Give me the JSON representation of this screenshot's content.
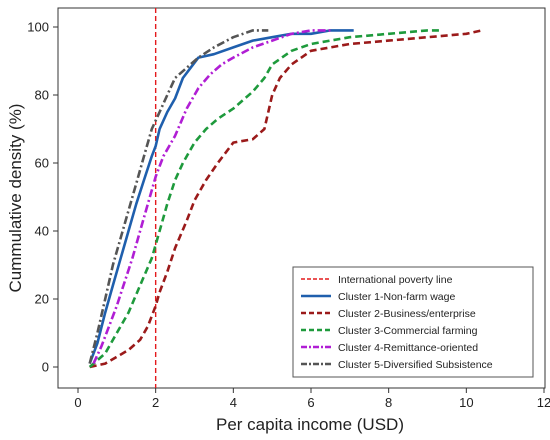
{
  "chart_data": {
    "type": "line",
    "title": "",
    "xlabel": "Per capita income (USD)",
    "ylabel": "Cummulative density (%)",
    "xlim": [
      0,
      12
    ],
    "ylim": [
      0,
      100
    ],
    "x_ticks": [
      "0",
      "2",
      "4",
      "6",
      "8",
      "10",
      "12"
    ],
    "y_ticks": [
      "0",
      "20",
      "40",
      "60",
      "80",
      "100"
    ],
    "grid": false,
    "legend_position": "bottom-right",
    "reference_line": {
      "name": "International poverty line",
      "x": 2,
      "color": "#e41a1c",
      "style": "dashed"
    },
    "series": [
      {
        "name": "Cluster 1-Non-farm wage",
        "color": "#1f5fad",
        "style": "solid",
        "x": [
          0.3,
          0.5,
          0.7,
          0.9,
          1.1,
          1.3,
          1.5,
          1.7,
          1.9,
          2.0,
          2.1,
          2.3,
          2.5,
          2.7,
          2.9,
          3.1,
          3.5,
          4.0,
          4.5,
          5.0,
          5.5,
          6.0,
          6.5,
          7.1
        ],
        "values": [
          1,
          7,
          16,
          24,
          32,
          40,
          48,
          55,
          62,
          65,
          70,
          75,
          79,
          85,
          88,
          91,
          92,
          94,
          96,
          97,
          98,
          98,
          99,
          99
        ]
      },
      {
        "name": "Cluster 2-Business/enterprise",
        "color": "#9b1a1a",
        "style": "dashed",
        "x": [
          0.3,
          0.7,
          1.0,
          1.3,
          1.6,
          1.8,
          2.0,
          2.1,
          2.3,
          2.5,
          2.8,
          3.0,
          3.3,
          3.6,
          4.0,
          4.5,
          4.8,
          5.0,
          5.2,
          5.5,
          6.0,
          7.0,
          8.0,
          9.0,
          10.0,
          10.4
        ],
        "values": [
          0,
          1,
          3,
          5,
          8,
          12,
          18,
          22,
          28,
          35,
          43,
          49,
          55,
          60,
          66,
          67,
          70,
          80,
          85,
          89,
          93,
          95,
          96,
          97,
          98,
          99
        ]
      },
      {
        "name": "Cluster 3-Commercial farming",
        "color": "#1e9a3c",
        "style": "dashed",
        "x": [
          0.3,
          0.7,
          1.0,
          1.3,
          1.6,
          1.9,
          2.1,
          2.3,
          2.5,
          2.7,
          3.0,
          3.3,
          3.6,
          4.0,
          4.3,
          4.5,
          4.8,
          5.0,
          5.5,
          6.0,
          7.0,
          8.0,
          9.0,
          9.3
        ],
        "values": [
          0,
          4,
          10,
          16,
          24,
          32,
          40,
          48,
          55,
          60,
          66,
          70,
          73,
          76,
          79,
          81,
          85,
          89,
          93,
          95,
          97,
          98,
          99,
          99
        ]
      },
      {
        "name": "Cluster 4-Remittance-oriented",
        "color": "#b01ed4",
        "style": "dashdot",
        "x": [
          0.4,
          0.6,
          0.8,
          1.0,
          1.2,
          1.4,
          1.6,
          1.8,
          2.0,
          2.2,
          2.5,
          2.8,
          3.1,
          3.4,
          3.7,
          4.0,
          4.5,
          5.0,
          5.5,
          6.0,
          6.5
        ],
        "values": [
          1,
          6,
          12,
          18,
          25,
          32,
          40,
          48,
          56,
          62,
          68,
          76,
          82,
          86,
          89,
          91,
          94,
          96,
          98,
          99,
          99
        ]
      },
      {
        "name": "Cluster 5-Diversified Subsistence",
        "color": "#555555",
        "style": "dashdot",
        "x": [
          0.3,
          0.5,
          0.7,
          0.9,
          1.1,
          1.3,
          1.5,
          1.7,
          1.9,
          2.1,
          2.3,
          2.5,
          2.8,
          3.1,
          3.5,
          4.0,
          4.5,
          4.9
        ],
        "values": [
          1,
          10,
          20,
          30,
          38,
          46,
          54,
          62,
          70,
          75,
          80,
          85,
          88,
          91,
          94,
          97,
          99,
          99
        ]
      }
    ]
  }
}
